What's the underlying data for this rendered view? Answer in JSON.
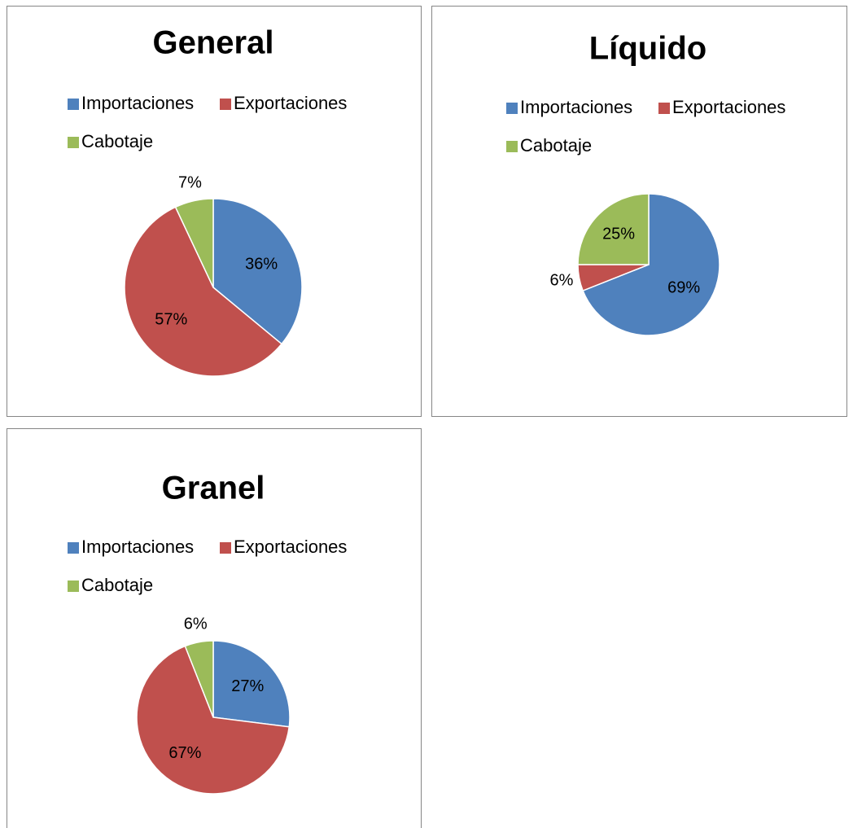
{
  "chart_data": [
    {
      "type": "pie",
      "title": "General",
      "categories": [
        "Importaciones",
        "Exportaciones",
        "Cabotaje"
      ],
      "values": [
        36,
        57,
        7
      ],
      "value_labels": [
        "36%",
        "57%",
        "7%"
      ],
      "colors": [
        "#4f81bd",
        "#c0504d",
        "#9bbb59"
      ]
    },
    {
      "type": "pie",
      "title": "Líquido",
      "categories": [
        "Importaciones",
        "Exportaciones",
        "Cabotaje"
      ],
      "values": [
        69,
        6,
        25
      ],
      "value_labels": [
        "69%",
        "6%",
        "25%"
      ],
      "colors": [
        "#4f81bd",
        "#c0504d",
        "#9bbb59"
      ]
    },
    {
      "type": "pie",
      "title": "Granel",
      "categories": [
        "Importaciones",
        "Exportaciones",
        "Cabotaje"
      ],
      "values": [
        27,
        67,
        6
      ],
      "value_labels": [
        "27%",
        "67%",
        "6%"
      ],
      "colors": [
        "#4f81bd",
        "#c0504d",
        "#9bbb59"
      ]
    }
  ]
}
